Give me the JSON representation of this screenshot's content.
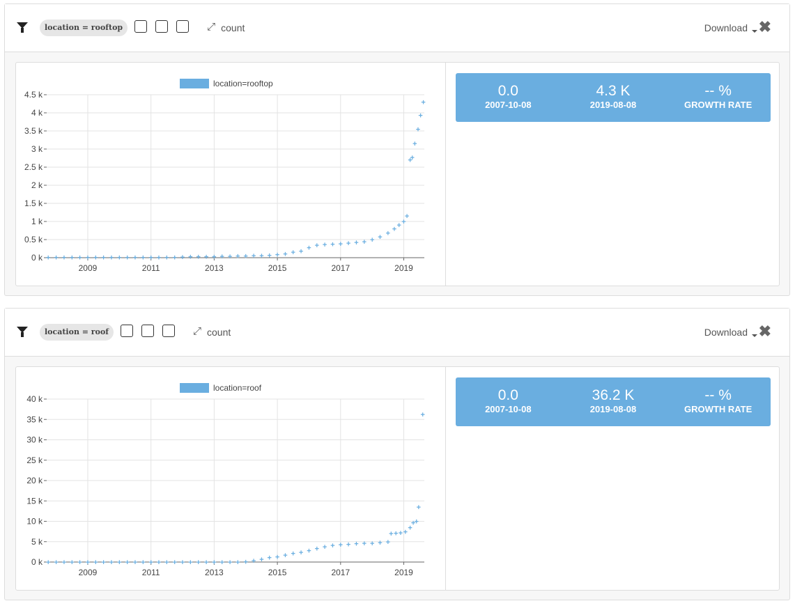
{
  "panels": [
    {
      "filter": "location = rooftop",
      "measure": "count",
      "download": "Download",
      "stats": [
        {
          "value": "0.0",
          "label": "2007-10-08"
        },
        {
          "value": "4.3 K",
          "label": "2019-08-08"
        },
        {
          "value": "-- %",
          "label": "GROWTH RATE"
        }
      ],
      "chart_data": {
        "type": "scatter",
        "marker": "+",
        "grid": true,
        "xlim": [
          2007.7,
          2019.65
        ],
        "xticks": [
          2009,
          2011,
          2013,
          2015,
          2017,
          2019
        ],
        "ylim": [
          0,
          4500
        ],
        "yticks": [
          {
            "value": 0,
            "label": "0 k"
          },
          {
            "value": 500,
            "label": "0.5 k"
          },
          {
            "value": 1000,
            "label": "1 k"
          },
          {
            "value": 1500,
            "label": "1.5 k"
          },
          {
            "value": 2000,
            "label": "2 k"
          },
          {
            "value": 2500,
            "label": "2.5 k"
          },
          {
            "value": 3000,
            "label": "3 k"
          },
          {
            "value": 3500,
            "label": "3.5 k"
          },
          {
            "value": 4000,
            "label": "4 k"
          },
          {
            "value": 4500,
            "label": "4.5 k"
          }
        ],
        "x": [
          2007.75,
          2008,
          2008.25,
          2008.5,
          2008.75,
          2009,
          2009.25,
          2009.5,
          2009.75,
          2010,
          2010.25,
          2010.5,
          2010.75,
          2011,
          2011.25,
          2011.5,
          2011.75,
          2012,
          2012.25,
          2012.5,
          2012.75,
          2013,
          2013.25,
          2013.5,
          2013.75,
          2014,
          2014.25,
          2014.5,
          2014.75,
          2015,
          2015.25,
          2015.5,
          2015.75,
          2016,
          2016.25,
          2016.5,
          2016.75,
          2017,
          2017.25,
          2017.5,
          2017.75,
          2018,
          2018.25,
          2018.5,
          2018.7,
          2018.85,
          2019,
          2019.1,
          2019.2,
          2019.27,
          2019.35,
          2019.45,
          2019.53,
          2019.62
        ],
        "series": [
          {
            "name": "location=rooftop",
            "color": "#6aaee0",
            "values": [
              5,
              5,
              5,
              5,
              5,
              5,
              5,
              5,
              5,
              5,
              5,
              5,
              5,
              5,
              5,
              5,
              5,
              20,
              25,
              25,
              30,
              30,
              35,
              40,
              45,
              50,
              55,
              60,
              70,
              90,
              110,
              150,
              180,
              280,
              350,
              370,
              375,
              385,
              400,
              420,
              440,
              500,
              580,
              680,
              800,
              900,
              1000,
              1150,
              2700,
              2770,
              3150,
              3550,
              3930,
              4300
            ]
          }
        ]
      }
    },
    {
      "filter": "location = roof",
      "measure": "count",
      "download": "Download",
      "stats": [
        {
          "value": "0.0",
          "label": "2007-10-08"
        },
        {
          "value": "36.2 K",
          "label": "2019-08-08"
        },
        {
          "value": "-- %",
          "label": "GROWTH RATE"
        }
      ],
      "chart_data": {
        "type": "scatter",
        "marker": "+",
        "grid": true,
        "xlim": [
          2007.7,
          2019.65
        ],
        "xticks": [
          2009,
          2011,
          2013,
          2015,
          2017,
          2019
        ],
        "ylim": [
          0,
          40000
        ],
        "yticks": [
          {
            "value": 0,
            "label": "0 k"
          },
          {
            "value": 5000,
            "label": "5 k"
          },
          {
            "value": 10000,
            "label": "10 k"
          },
          {
            "value": 15000,
            "label": "15 k"
          },
          {
            "value": 20000,
            "label": "20 k"
          },
          {
            "value": 25000,
            "label": "25 k"
          },
          {
            "value": 30000,
            "label": "30 k"
          },
          {
            "value": 35000,
            "label": "35 k"
          },
          {
            "value": 40000,
            "label": "40 k"
          }
        ],
        "x": [
          2007.75,
          2008,
          2008.25,
          2008.5,
          2008.75,
          2009,
          2009.25,
          2009.5,
          2009.75,
          2010,
          2010.25,
          2010.5,
          2010.75,
          2011,
          2011.25,
          2011.5,
          2011.75,
          2012,
          2012.25,
          2012.5,
          2012.75,
          2013,
          2013.25,
          2013.5,
          2013.75,
          2014,
          2014.25,
          2014.5,
          2014.75,
          2015,
          2015.25,
          2015.5,
          2015.75,
          2016,
          2016.25,
          2016.5,
          2016.75,
          2017,
          2017.25,
          2017.5,
          2017.75,
          2018,
          2018.25,
          2018.5,
          2018.6,
          2018.75,
          2018.9,
          2019.05,
          2019.2,
          2019.3,
          2019.4,
          2019.47,
          2019.6
        ],
        "series": [
          {
            "name": "location=roof",
            "color": "#6aaee0",
            "values": [
              0,
              0,
              0,
              0,
              0,
              0,
              0,
              0,
              0,
              0,
              0,
              0,
              0,
              0,
              0,
              0,
              0,
              0,
              0,
              0,
              0,
              0,
              0,
              0,
              0,
              100,
              300,
              700,
              1100,
              1300,
              1700,
              2100,
              2400,
              2800,
              3300,
              3800,
              4100,
              4300,
              4400,
              4500,
              4600,
              4650,
              4800,
              5000,
              7000,
              7100,
              7200,
              7400,
              8500,
              9700,
              10000,
              13500,
              36200
            ]
          }
        ]
      }
    }
  ]
}
